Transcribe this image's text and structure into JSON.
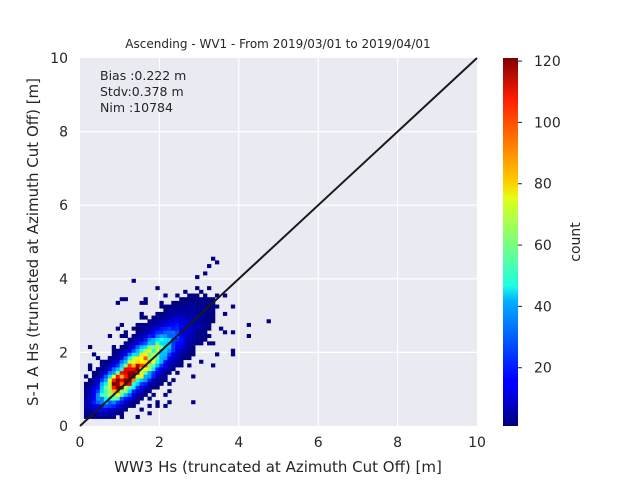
{
  "chart_data": {
    "type": "heatmap",
    "title": "Ascending - WV1 - From 2019/03/01 to 2019/04/01",
    "xlabel": "WW3 Hs (truncated at Azimuth Cut Off) [m]",
    "ylabel": "S-1 A Hs (truncated at Azimuth Cut Off) [m]",
    "xlim": [
      0,
      10
    ],
    "ylim": [
      0,
      10
    ],
    "xticks": [
      "0",
      "2",
      "4",
      "6",
      "8",
      "10"
    ],
    "yticks": [
      "0",
      "2",
      "4",
      "6",
      "8",
      "10"
    ],
    "grid": true,
    "stats": {
      "bias": "Bias :0.222 m",
      "stdv": "Stdv:0.378 m",
      "nim": "Nim :10784"
    },
    "reference_line": {
      "x": [
        0,
        10
      ],
      "y": [
        0,
        10
      ]
    },
    "colorbar": {
      "label": "count",
      "min": 1,
      "max": 121,
      "ticks": [
        "20",
        "40",
        "60",
        "80",
        "100",
        "120"
      ],
      "colormap": "jet"
    },
    "density": {
      "center_x": 1.05,
      "center_y": 1.1,
      "peak_count": 121,
      "bin_size": 0.1,
      "extent_x": [
        0.1,
        4.8
      ],
      "extent_y": [
        0.2,
        4.9
      ]
    }
  }
}
